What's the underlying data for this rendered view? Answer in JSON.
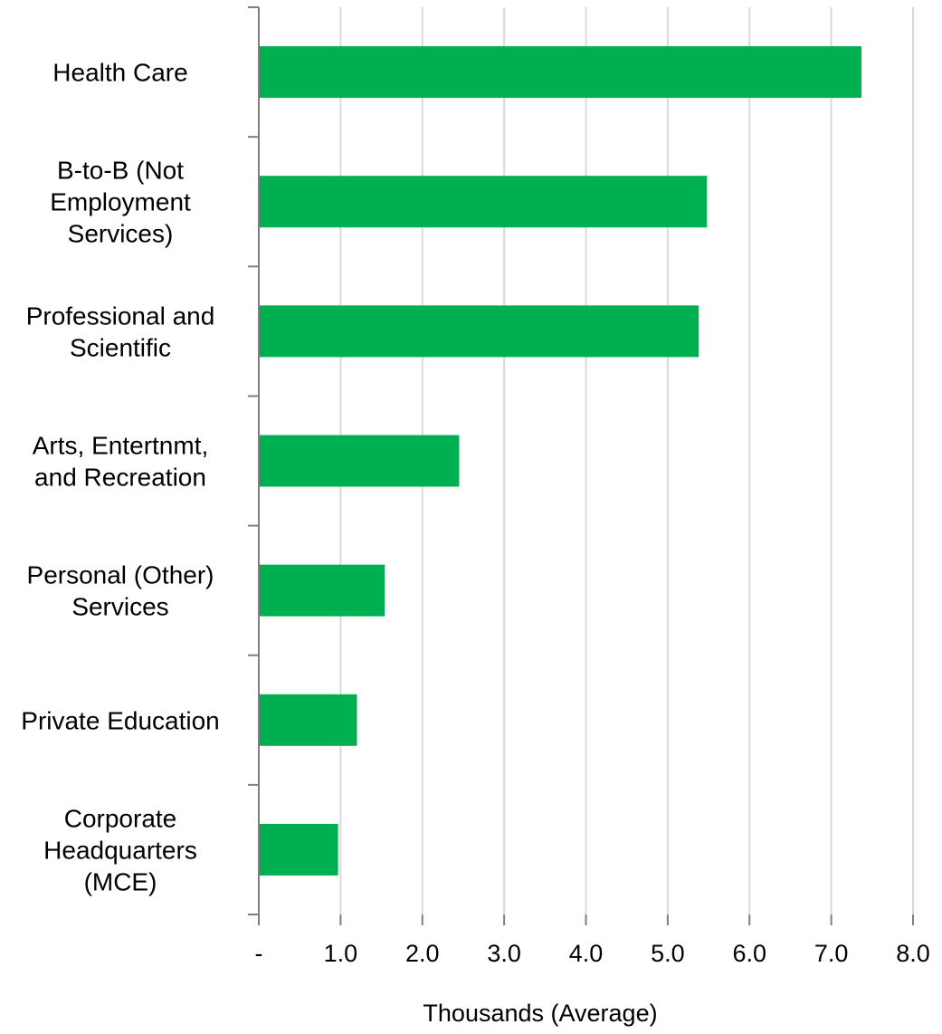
{
  "chart_data": {
    "type": "bar",
    "orientation": "horizontal",
    "categories": [
      [
        "Health Care"
      ],
      [
        "B-to-B (Not",
        "Employment",
        "Services)"
      ],
      [
        "Professional and",
        "Scientific"
      ],
      [
        "Arts, Entertnmt,",
        "and Recreation"
      ],
      [
        "Personal (Other)",
        "Services"
      ],
      [
        "Private Education"
      ],
      [
        "Corporate",
        "Headquarters",
        "(MCE)"
      ]
    ],
    "values": [
      7.37,
      5.48,
      5.38,
      2.45,
      1.54,
      1.2,
      0.97
    ],
    "xlabel": "Thousands  (Average)",
    "xlim": [
      0,
      8
    ],
    "xticks": [
      0,
      1,
      2,
      3,
      4,
      5,
      6,
      7,
      8
    ],
    "xtick_labels": [
      "-",
      "1.0",
      "2.0",
      "3.0",
      "4.0",
      "5.0",
      "6.0",
      "7.0",
      "8.0"
    ],
    "bar_color": "#00b050",
    "grid": "vertical major gridlines"
  }
}
